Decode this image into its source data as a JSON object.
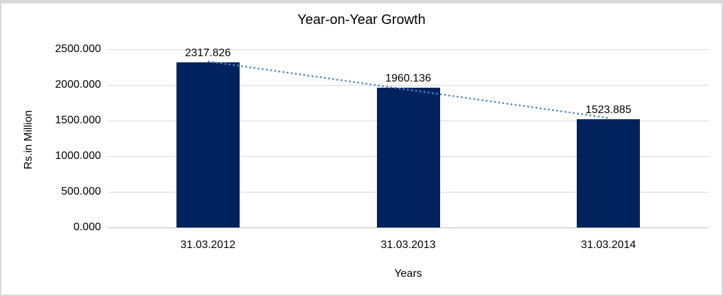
{
  "chart_data": {
    "type": "bar",
    "title": "Year-on-Year Growth",
    "xlabel": "Years",
    "ylabel": "Rs.in Million",
    "categories": [
      "31.03.2012",
      "31.03.2013",
      "31.03.2014"
    ],
    "values": [
      2317.826,
      1960.136,
      1523.885
    ],
    "value_labels": [
      "2317.826",
      "1960.136",
      "1523.885"
    ],
    "ylim": [
      0,
      2500
    ],
    "yticks": [
      0,
      500,
      1000,
      1500,
      2000,
      2500
    ],
    "ytick_labels": [
      "0.000",
      "500.000",
      "1000.000",
      "1500.000",
      "2000.000",
      "2500.000"
    ],
    "grid": true,
    "legend": false,
    "bar_color": "#02225E",
    "gridline_color": "#D9D9D9",
    "axis_line_color": "#BDBDBD",
    "trendline": {
      "type": "linear",
      "style": "dotted",
      "color": "#4F87C9"
    },
    "frame_border_color": "#D8D8D8",
    "background": "#FFFFFF",
    "text_color": "#000000"
  }
}
